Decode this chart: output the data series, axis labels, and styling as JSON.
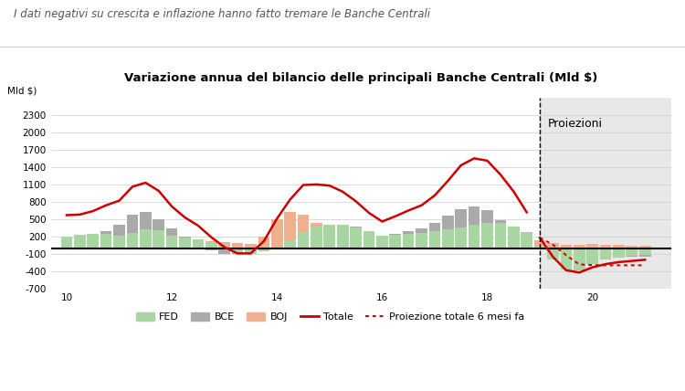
{
  "title_main": "I dati negativi su crescita e inflazione hanno fatto tremare le Banche Centrali",
  "title_sub_bold": "Variazione annua del bilancio delle principali Banche Centrali",
  "title_sub_normal": " (Mld $)",
  "ylabel": "Mld $)",
  "projection_label": "Proiezioni",
  "legend_fed": "FED",
  "legend_bce": "BCE",
  "legend_boj": "BOJ",
  "legend_totale": "Totale",
  "legend_proj": "Proiezione totale 6 mesi fa",
  "color_fed": "#a8d5a2",
  "color_bce": "#aaaaaa",
  "color_boj": "#f0b090",
  "color_totale": "#cc0000",
  "color_proj": "#cc0000",
  "projection_start_x": 19.0,
  "xlim": [
    9.7,
    21.5
  ],
  "ylim": [
    -700,
    2600
  ],
  "yticks": [
    -700,
    -400,
    -100,
    200,
    500,
    800,
    1100,
    1400,
    1700,
    2000,
    2300
  ],
  "xticks": [
    10,
    12,
    14,
    16,
    18,
    20
  ],
  "x": [
    10.0,
    10.25,
    10.5,
    10.75,
    11.0,
    11.25,
    11.5,
    11.75,
    12.0,
    12.25,
    12.5,
    12.75,
    13.0,
    13.25,
    13.5,
    13.75,
    14.0,
    14.25,
    14.5,
    14.75,
    15.0,
    15.25,
    15.5,
    15.75,
    16.0,
    16.25,
    16.5,
    16.75,
    17.0,
    17.25,
    17.5,
    17.75,
    18.0,
    18.25,
    18.5,
    18.75,
    19.0,
    19.25,
    19.5,
    19.75,
    20.0,
    20.25,
    20.5,
    20.75,
    21.0
  ],
  "fed": [
    200,
    230,
    250,
    240,
    210,
    270,
    330,
    310,
    220,
    185,
    160,
    100,
    20,
    -80,
    -100,
    -50,
    0,
    130,
    300,
    370,
    410,
    400,
    360,
    290,
    210,
    230,
    250,
    270,
    300,
    330,
    360,
    400,
    440,
    430,
    380,
    280,
    40,
    -200,
    -370,
    -380,
    -270,
    -200,
    -155,
    -130,
    -110
  ],
  "bce": [
    200,
    195,
    230,
    300,
    400,
    580,
    620,
    500,
    340,
    200,
    90,
    -30,
    -100,
    -100,
    -70,
    -30,
    0,
    80,
    200,
    300,
    380,
    400,
    370,
    300,
    220,
    250,
    290,
    340,
    430,
    560,
    680,
    720,
    650,
    480,
    320,
    150,
    10,
    -40,
    -65,
    -100,
    -130,
    -140,
    -140,
    -140,
    -140
  ],
  "boj": [
    150,
    145,
    150,
    190,
    200,
    195,
    180,
    165,
    150,
    140,
    130,
    115,
    100,
    90,
    80,
    200,
    500,
    620,
    580,
    430,
    290,
    175,
    80,
    20,
    30,
    70,
    110,
    130,
    180,
    270,
    390,
    430,
    420,
    360,
    280,
    190,
    130,
    90,
    55,
    60,
    70,
    65,
    55,
    50,
    50
  ],
  "totale": [
    570,
    580,
    640,
    740,
    820,
    1060,
    1130,
    990,
    720,
    530,
    390,
    190,
    20,
    -90,
    -90,
    120,
    510,
    840,
    1090,
    1100,
    1080,
    975,
    810,
    610,
    460,
    550,
    650,
    740,
    910,
    1160,
    1430,
    1550,
    1510,
    1270,
    980,
    620,
    180,
    -150,
    -380,
    -420,
    -330,
    -275,
    -240,
    -220,
    -200
  ],
  "proj": [
    null,
    null,
    null,
    null,
    null,
    null,
    null,
    null,
    null,
    null,
    null,
    null,
    null,
    null,
    null,
    null,
    null,
    null,
    null,
    null,
    null,
    null,
    null,
    null,
    null,
    null,
    null,
    null,
    null,
    null,
    null,
    null,
    null,
    null,
    null,
    null,
    180,
    60,
    -120,
    -280,
    -290,
    -295,
    -295,
    -295,
    -295
  ]
}
